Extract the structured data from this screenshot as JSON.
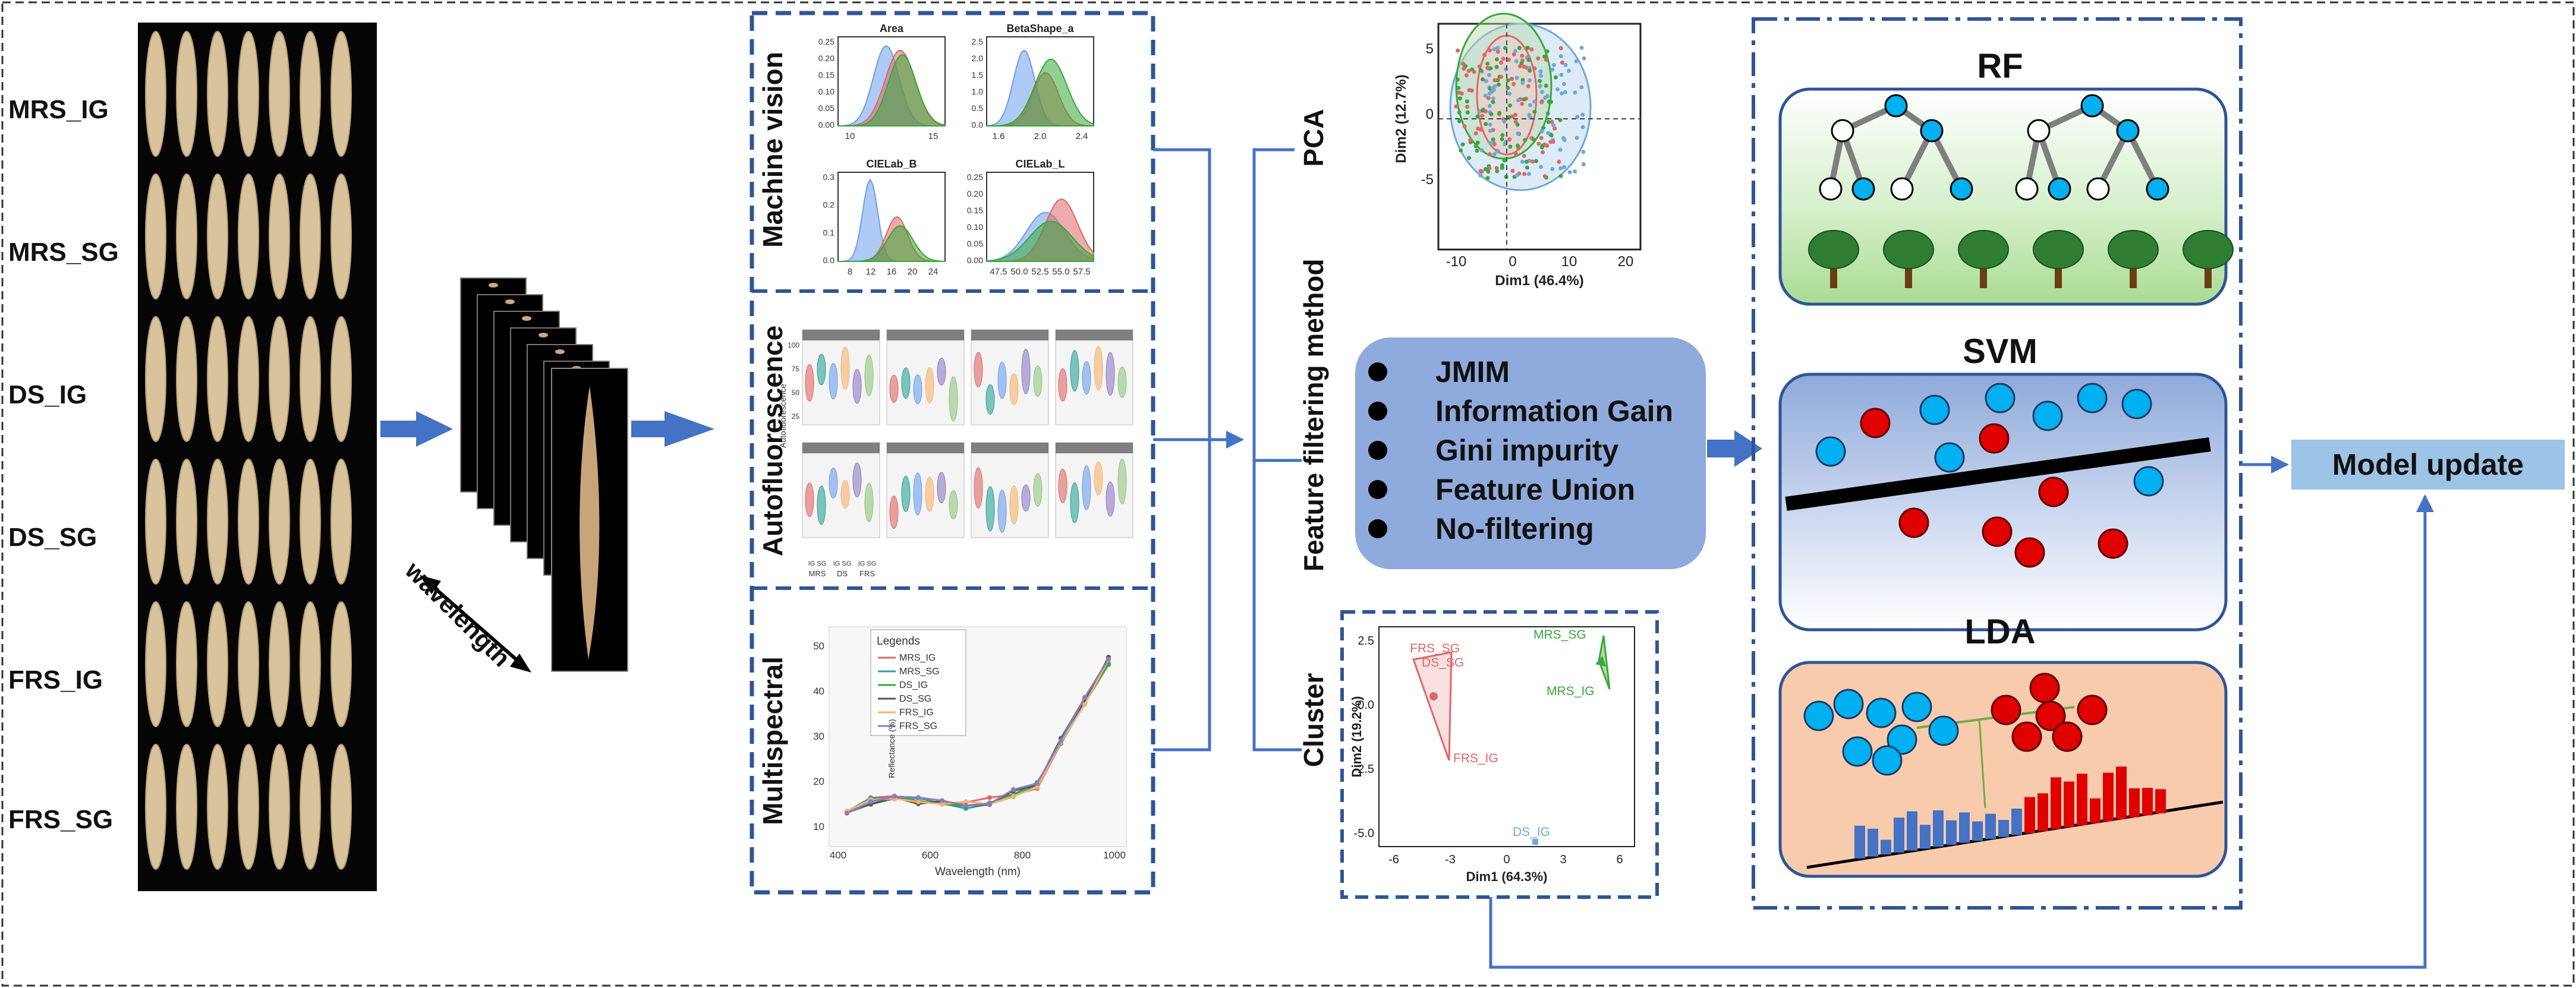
{
  "figure": {
    "border_color": "#333333",
    "accent_blue": "#2f5597",
    "arrow_blue": "#4472c4"
  },
  "seed_image": {
    "rows": [
      "MRS_IG",
      "MRS_SG",
      "DS_IG",
      "DS_SG",
      "FRS_IG",
      "FRS_SG"
    ],
    "seeds_per_row": 7,
    "seed_color": "#d8c39c"
  },
  "hyperspectral": {
    "stack_label": "wavelength"
  },
  "panels": {
    "machine_vision": {
      "label": "Machine vision",
      "subplots": [
        {
          "title": "Area",
          "yticks": [
            "0.25",
            "0.20",
            "0.15",
            "0.10",
            "0.05",
            "0.00"
          ],
          "xticks": [
            "10",
            "15"
          ]
        },
        {
          "title": "BetaShape_a",
          "yticks": [
            "2.5",
            "2.0",
            "1.5",
            "1.0",
            "0.5",
            "0.0"
          ],
          "xticks": [
            "1.6",
            "2.0",
            "2.4"
          ]
        },
        {
          "title": "CIELab_B",
          "yticks": [
            "0.3",
            "0.2",
            "0.1",
            "0.0"
          ],
          "xticks": [
            "8",
            "12",
            "16",
            "20",
            "24"
          ]
        },
        {
          "title": "CIELab_L",
          "yticks": [
            "0.25",
            "0.20",
            "0.15",
            "0.10",
            "0.05",
            "0.00"
          ],
          "xticks": [
            "47.5",
            "50.0",
            "52.5",
            "55.0",
            "57.5"
          ]
        }
      ]
    },
    "autofluorescence": {
      "label": "Autofluorescence",
      "ylabel": "Autofluorescence",
      "yticks": [
        "100",
        "75",
        "50",
        "25"
      ],
      "xgroups": [
        "IG SG",
        "IG SG",
        "IG SG"
      ],
      "xcats": [
        "MRS",
        "DS",
        "FRS"
      ]
    },
    "multispectral": {
      "label": "Multispectral",
      "legend_title": "Legends",
      "legend": [
        "MRS_IG",
        "MRS_SG",
        "DS_IG",
        "DS_SG",
        "FRS_IG",
        "FRS_SG"
      ],
      "xlabel": "Wavelength (nm)",
      "ylabel": "Reflectance (%)",
      "xticks": [
        "400",
        "600",
        "800",
        "1000"
      ],
      "yticks": [
        "50",
        "40",
        "30",
        "20",
        "10"
      ]
    }
  },
  "pca": {
    "label": "PCA",
    "xlabel": "Dim1 (46.4%)",
    "ylabel": "Dim2 (12.7%)",
    "xticks": [
      "-10",
      "0",
      "10",
      "20"
    ],
    "yticks": [
      "5",
      "0",
      "-5"
    ]
  },
  "feature_filtering": {
    "label": "Feature filtering method",
    "items": [
      "JMIM",
      "Information Gain",
      "Gini impurity",
      "Feature Union",
      "No-filtering"
    ],
    "box_color": "#8faadc"
  },
  "cluster": {
    "label": "Cluster",
    "xlabel": "Dim1 (64.3%)",
    "ylabel": "Dim2 (19.2%)",
    "xticks": [
      "-6",
      "-3",
      "0",
      "3",
      "6"
    ],
    "yticks": [
      "2.5",
      "0.0",
      "-2.5",
      "-5.0"
    ],
    "point_labels": [
      "FRS_SG",
      "DS_SG",
      "FRS_IG",
      "MRS_SG",
      "MRS_IG",
      "DS_IG"
    ]
  },
  "models": {
    "rf": {
      "title": "RF",
      "bg": "#c6e8b8"
    },
    "svm": {
      "title": "SVM",
      "bg": "#b4c7e7"
    },
    "lda": {
      "title": "LDA",
      "bg": "#f8cbad"
    },
    "node_blue": "#00b0f0",
    "node_red": "#e00000"
  },
  "model_update": {
    "label": "Model update"
  }
}
